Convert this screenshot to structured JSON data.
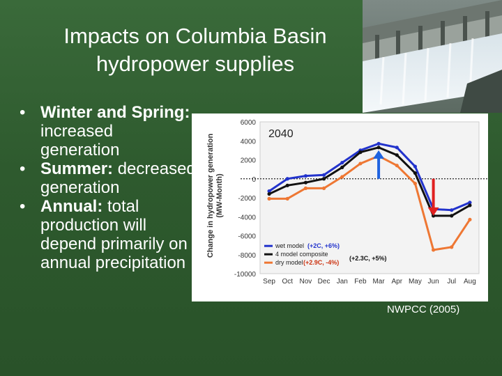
{
  "slide": {
    "title_line1": "Impacts on Columbia Basin",
    "title_line2": "hydropower supplies",
    "bullets": [
      {
        "bold": "Winter and Spring:",
        "text": " increased generation"
      },
      {
        "bold": "Summer:",
        "text": " decreased generation"
      },
      {
        "bold": "Annual:",
        "text": " total production will depend primarily on annual precipitation"
      }
    ],
    "citation": "NWPCC (2005)"
  },
  "colors": {
    "background": "#2f5a2f",
    "wet": "#2233cc",
    "composite": "#111111",
    "dry": "#ee7733",
    "arrow_up": "#1f63e0",
    "arrow_down": "#e02020"
  },
  "chart_data": {
    "type": "line",
    "title": "2040",
    "ylabel": "Change in hydropower generation (MW-Month)",
    "xlabel": "",
    "categories": [
      "Sep",
      "Oct",
      "Nov",
      "Dec",
      "Jan",
      "Feb",
      "Mar",
      "Apr",
      "May",
      "Jun",
      "Jul",
      "Aug"
    ],
    "ylim": [
      -10000,
      6000
    ],
    "yticks": [
      6000,
      4000,
      2000,
      0,
      -2000,
      -4000,
      -6000,
      -8000,
      -10000
    ],
    "ytick_labels": [
      "6000",
      "4000",
      "2000",
      "0",
      "-2000",
      "-4000",
      "-6000",
      "-8000",
      "-10000"
    ],
    "zero_line": "dotted",
    "series": [
      {
        "name": "wet model",
        "annotation": "(+2C, +6%)",
        "color": "#2233cc",
        "values": [
          -1300,
          0,
          300,
          400,
          1700,
          3000,
          3700,
          3300,
          1300,
          -3200,
          -3300,
          -2500
        ]
      },
      {
        "name": "4 model composite",
        "annotation": "(+2.3C, +5%)",
        "color": "#111111",
        "values": [
          -1600,
          -700,
          -400,
          0,
          1200,
          2800,
          3300,
          2500,
          600,
          -3900,
          -3900,
          -2800
        ]
      },
      {
        "name": "dry model",
        "annotation": "(+2.9C, -4%)",
        "color": "#ee7733",
        "values": [
          -2100,
          -2100,
          -1000,
          -1000,
          200,
          1600,
          2400,
          1400,
          -500,
          -7500,
          -7200,
          -4300
        ]
      }
    ],
    "arrows": [
      {
        "month": "Mar",
        "direction": "up",
        "color": "#1f63e0",
        "from": 0,
        "to": 3000
      },
      {
        "month": "Jun",
        "direction": "down",
        "color": "#e02020",
        "from": 0,
        "to": -3900
      }
    ],
    "legend_position": "bottom-left"
  }
}
